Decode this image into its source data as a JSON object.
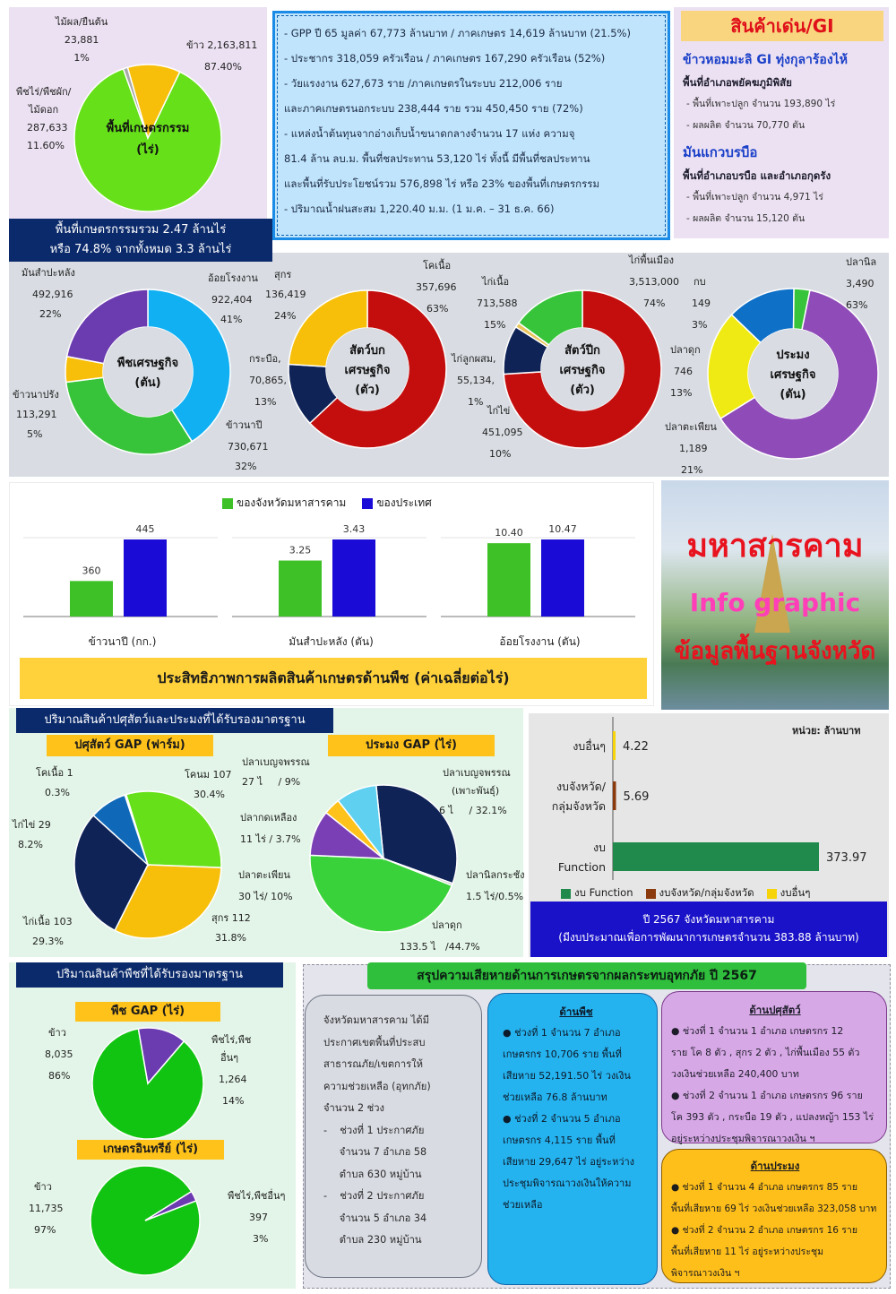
{
  "colors": {
    "green": "#66e019",
    "yellow": "#f7bf0a",
    "blue_light": "#10b0f3",
    "purple": "#6b3bb0",
    "dark_red": "#c40e0e",
    "navy": "#0f2357",
    "bar_green": "#3ec126",
    "bar_blue": "#1a0bd6",
    "panel_lilac": "#ece1f2",
    "panel_gray": "#d9dde3",
    "panel_green": "#e3f5e8",
    "header_navy": "#0b2a6b"
  },
  "land_pie": {
    "center": [
      "พื้นที่เกษตรกรรม",
      "(ไร่)"
    ],
    "rice": [
      "ข้าว 2,163,811",
      "87.40%"
    ],
    "fruit": [
      "ไม้ผล/ยืนต้น",
      "23,881",
      "1%"
    ],
    "field": [
      "พืชไร่/พืชผัก/",
      "ไม้ดอก",
      "287,633",
      "11.60%"
    ],
    "values": [
      87.4,
      1,
      11.6
    ],
    "caption": [
      "พื้นที่เกษตรกรรมรวม 2.47 ล้านไร่",
      "หรือ 74.8% จากทั้งหมด 3.3 ล้านไร่"
    ]
  },
  "info_box": {
    "lines": [
      "- GPP ปี 65 มูลค่า 67,773 ล้านบาท / ภาคเกษตร 14,619 ล้านบาท (21.5%)",
      "- ประชากร 318,059 ครัวเรือน / ภาคเกษตร 167,290 ครัวเรือน (52%)",
      "- วัยแรงงาน 627,673 ราย /ภาคเกษตรในระบบ 212,006 ราย",
      "และภาคเกษตรนอกระบบ 238,444 ราย รวม 450,450 ราย (72%)",
      "- แหล่งน้ำต้นทุนจากอ่างเก็บน้ำขนาดกลางจำนวน 17 แห่ง ความจุ",
      "81.4 ล้าน ลบ.ม. พื้นที่ชลประทาน 53,120 ไร่ ทั้งนี้ มีพื้นที่ชลประทาน",
      "และพื้นที่รับประโยชน์รวม 576,898 ไร่ หรือ 23% ของพื้นที่เกษตรกรรม",
      "- ปริมาณน้ำฝนสะสม 1,220.40 ม.ม. (1 ม.ค. – 31 ธ.ค. 66)"
    ]
  },
  "gi": {
    "title": "สินค้าเด่น/GI",
    "p1_title": "ข้าวหอมมะลิ GI ทุ่งกุลาร้องไห้",
    "p1_sub": "พื้นที่อำเภอพยัคฆภูมิพิสัย",
    "p1_lines": [
      "- พื้นที่เพาะปลูก จำนวน 193,890 ไร่",
      "- ผลผลิต จำนวน 70,770 ตัน"
    ],
    "p2_title": "มันแกวบรบือ",
    "p2_sub": "พื้นที่อำเภอบรบือ และอำเภอกุดรัง",
    "p2_lines": [
      "- พื้นที่เพาะปลูก จำนวน 4,971 ไร่",
      "- ผลผลิต จำนวน 15,120 ตัน"
    ]
  },
  "donuts": {
    "crops": {
      "center": [
        "พืชเศรษฐกิจ",
        "(ตัน)"
      ],
      "values": [
        41,
        32,
        5,
        22
      ],
      "labels": {
        "sugarcane": [
          "อ้อยโรงงาน",
          "922,404",
          "41%"
        ],
        "rice": [
          "ข้าวนาปี",
          "730,671",
          "32%"
        ],
        "offrice": [
          "ข้าวนาปรัง",
          "113,291",
          "5%"
        ],
        "cassava": [
          "มันสำปะหลัง",
          "492,916",
          "22%"
        ]
      }
    },
    "large_animals": {
      "center": [
        "สัตว์บก",
        "เศรษฐกิจ",
        "(ตัว)"
      ],
      "values": [
        63,
        13,
        24
      ],
      "labels": {
        "cattle": [
          "โคเนื้อ",
          "357,696",
          "63%"
        ],
        "buffalo": [
          "กระบือ,",
          "70,865,",
          "13%"
        ],
        "pig": [
          "สุกร",
          "136,419",
          "24%"
        ]
      }
    },
    "poultry": {
      "center": [
        "สัตว์ปีก",
        "เศรษฐกิจ",
        "(ตัว)"
      ],
      "values": [
        74,
        10,
        1,
        15
      ],
      "labels": {
        "native": [
          "ไก่พื้นเมือง",
          "3,513,000",
          "74%"
        ],
        "egg": [
          "ไก่ไข่",
          "451,095",
          "10%"
        ],
        "mixed": [
          "ไก่ลูกผสม,",
          "55,134,",
          "1%"
        ],
        "broiler": [
          "ไก่เนื้อ",
          "713,588",
          "15%"
        ]
      }
    },
    "fishery": {
      "center": [
        "ประมง",
        "เศรษฐกิจ",
        "(ตัน)"
      ],
      "values": [
        63,
        21,
        13,
        3
      ],
      "labels": {
        "tilapia": [
          "ปลานิล",
          "3,490",
          "63%"
        ],
        "snakehead": [
          "ปลาตะเพียน",
          "1,189",
          "21%"
        ],
        "catfish": [
          "ปลาดุก",
          "746",
          "13%"
        ],
        "shrimp": [
          "กบ",
          "149",
          "3%"
        ]
      }
    }
  },
  "productivity": {
    "legend": [
      "ของจังหวัดมหาสารคาม",
      "ของประเทศ"
    ],
    "title": "ประสิทธิภาพการผลิตสินค้าเกษตรด้านพืช (ค่าเฉลี่ยต่อไร่)",
    "groups": [
      {
        "label": "ข้าวนาปี (กก.)",
        "province": 360,
        "country": 445,
        "plab": "360",
        "clab": "445"
      },
      {
        "label": "มันสำปะหลัง (ตัน)",
        "province": 3.25,
        "country": 3.43,
        "plab": "3.25",
        "clab": "3.43"
      },
      {
        "label": "อ้อยโรงงาน (ตัน)",
        "province": 10.4,
        "country": 10.47,
        "plab": "10.40",
        "clab": "10.47"
      }
    ]
  },
  "banner": {
    "line1": "มหาสารคาม",
    "line2": "Info graphic",
    "line3": "ข้อมูลพื้นฐานจังหวัด"
  },
  "gap_livestock": {
    "header": "ปริมาณสินค้าปศุสัตว์และประมงที่ได้รับรองมาตรฐาน",
    "livestock_title": "ปศุสัตว์ GAP (ฟาร์ม)",
    "livestock_values": [
      30.4,
      31.8,
      29.3,
      8.2,
      0.3
    ],
    "livestock_labels": {
      "dairy": [
        "โคนม 107",
        "30.4%"
      ],
      "pig": [
        "สุกร 112",
        "31.8%"
      ],
      "broiler": [
        "ไก่เนื้อ 103",
        "29.3%"
      ],
      "layer": [
        "ไก่ไข่ 29",
        "8.2%"
      ],
      "beef": [
        "โคเนื้อ 1",
        "0.3%"
      ]
    },
    "fish_title": "ประมง GAP (ไร่)",
    "fish_values": [
      32.1,
      0.5,
      44.7,
      10,
      3.7,
      9
    ],
    "fish_labels": {
      "barb_breed": [
        "ปลาเบญจพรรณ",
        "(เพาะพันธุ์)",
        "6 ไ",
        "/ 32.1%"
      ],
      "tilapia": [
        "ปลานิลกระชัง",
        "1.5 ไร่/0.5%"
      ],
      "catfish": [
        "ปลาดุก",
        "133.5 ไ",
        "/44.7%"
      ],
      "snakehead": [
        "ปลาตะเพียน",
        "30 ไร่/ 10%"
      ],
      "redfish": [
        "ปลากดเหลือง",
        "11 ไร่ / 3.7%"
      ],
      "barb": [
        "ปลาเบญจพรรณ",
        "27 ไ",
        "/ 9%"
      ]
    }
  },
  "budget": {
    "unit": "หน่วย: ล้านบาท",
    "rows": [
      {
        "label": [
          "งบอื่นๆ"
        ],
        "value": 4.22,
        "vlab": "4.22",
        "color": "#f7d40a"
      },
      {
        "label": [
          "งบจังหวัด/",
          "กลุ่มจังหวัด"
        ],
        "value": 5.69,
        "vlab": "5.69",
        "color": "#8b3a0e"
      },
      {
        "label": [
          "งบ",
          "Function"
        ],
        "value": 373.97,
        "vlab": "373.97",
        "color": "#1f8a4c"
      }
    ],
    "legend": [
      "งบ Function",
      "งบจังหวัด/กลุ่มจังหวัด",
      "งบอื่นๆ"
    ],
    "caption": [
      "ปี 2567 จังหวัดมหาสารคาม",
      "(มีงบประมาณเพื่อการพัฒนาการเกษตรจำนวน 383.88 ล้านบาท)"
    ]
  },
  "gap_crop": {
    "header": "ปริมาณสินค้าพืชที่ได้รับรองมาตรฐาน",
    "gap_title": "พืช GAP (ไร่)",
    "gap_values": [
      86,
      14
    ],
    "gap_labels": {
      "rice": [
        "ข้าว",
        "8,035",
        "86%"
      ],
      "other": [
        "พืชไร่,พืช",
        "อื่นๆ",
        "1,264",
        "14%"
      ]
    },
    "organic_title": "เกษตรอินทรีย์ (ไร่)",
    "organic_values": [
      97,
      3
    ],
    "organic_labels": {
      "rice": [
        "ข้าว",
        "11,735",
        "97%"
      ],
      "other": [
        "พืชไร่,พืชอื่นๆ",
        "397",
        "3%"
      ]
    }
  },
  "disaster": {
    "title": "สรุปความเสียหายด้านการเกษตรจากผลกระทบอุทกภัย ปี 2567",
    "general": [
      "จังหวัดมหาสารคาม ได้มี",
      "ประกาศเขตพื้นที่ประสบ",
      "สาธารณภัย/เขตการให้",
      "ความช่วยเหลือ (อุทกภัย)",
      "จำนวน 2 ช่วง",
      "-    ช่วงที่ 1 ประกาศภัย",
      "     จำนวน 7 อำเภอ 58",
      "     ตำบล 630 หมู่บ้าน",
      "-    ช่วงที่ 2 ประกาศภัย",
      "     จำนวน 5 อำเภอ 34",
      "     ตำบล 230 หมู่บ้าน"
    ],
    "crop_title": "ด้านพืช",
    "crop": [
      "● ช่วงที่ 1 จำนวน 7 อำเภอ",
      "เกษตรกร 10,706 ราย พื้นที่",
      "เสียหาย 52,191.50 ไร่ วงเงิน",
      "ช่วยเหลือ 76.8 ล้านบาท",
      "● ช่วงที่ 2 จำนวน 5 อำเภอ",
      "เกษตรกร 4,115 ราย พื้นที่",
      "เสียหาย 29,647 ไร่ อยู่ระหว่าง",
      "ประชุมพิจารณาวงเงินให้ความ",
      "ช่วยเหลือ"
    ],
    "livestock_title": "ด้านปศุสัตว์",
    "livestock": [
      "● ช่วงที่ 1 จำนวน 1 อำเภอ เกษตรกร 12",
      "ราย โค 8 ตัว , สุกร 2 ตัว , ไก่พื้นเมือง 55 ตัว",
      "วงเงินช่วยเหลือ 240,400 บาท",
      "● ช่วงที่ 2 จำนวน 1 อำเภอ เกษตรกร 96 ราย",
      "โค 393 ตัว , กระบือ 19 ตัว , แปลงหญ้า 153 ไร่",
      "อยู่ระหว่างประชุมพิจารณาวงเงิน ฯ"
    ],
    "fish_title": "ด้านประมง",
    "fish": [
      "● ช่วงที่ 1 จำนวน 4 อำเภอ เกษตรกร 85 ราย",
      "พื้นที่เสียหาย 69 ไร่ วงเงินช่วยเหลือ 323,058 บาท",
      "● ช่วงที่ 2 จำนวน 2 อำเภอ เกษตรกร 16 ราย",
      "พื้นที่เสียหาย 11 ไร่ อยู่ระหว่างประชุม",
      "พิจารณาวงเงิน ฯ"
    ]
  }
}
